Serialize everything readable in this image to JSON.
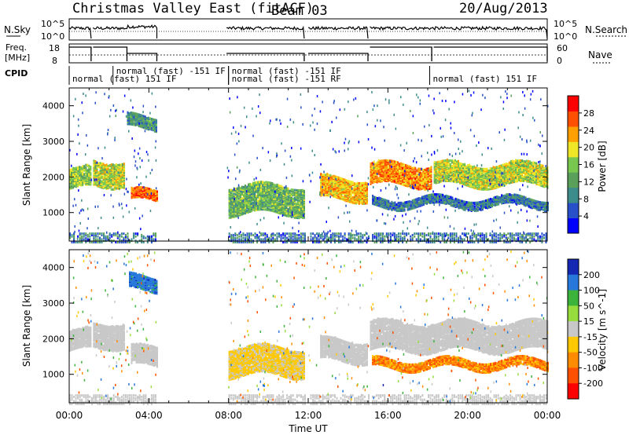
{
  "header": {
    "title": "Christmas Valley East (fitACF)",
    "beam": "Beam 03",
    "date": "20/Aug/2013"
  },
  "top_panels": {
    "nsky_label": "N.Sky",
    "nsearch_label": "N.Search",
    "nsky_ticks": [
      "10^5",
      "10^0"
    ],
    "freq_label_1": "Freq.",
    "freq_label_2": "[MHz]",
    "freq_ticks": [
      "18",
      "8"
    ],
    "nave_label": "Nave",
    "nave_ticks": [
      "60",
      "0"
    ],
    "cpid_label": "CPID",
    "cpid_entries": [
      {
        "text": "normal (fast) -151 IF",
        "row": 0,
        "start": 2.2
      },
      {
        "text": "normal (fast) 151 IF",
        "row": 1,
        "start": 0.0
      },
      {
        "text": "normal (fast) -151 IF",
        "row": 0,
        "start": 8.0
      },
      {
        "text": "normal (fast) -151 RF",
        "row": 1,
        "start": 8.0
      },
      {
        "text": "normal (fast) 151 IF",
        "row": 1,
        "start": 18.1
      }
    ]
  },
  "colors": {
    "power_scale": [
      "#0000ff",
      "#2850c8",
      "#3c8c8c",
      "#5aa05a",
      "#78c850",
      "#f0e628",
      "#ffa000",
      "#ff5000",
      "#ff0000"
    ],
    "velocity_scale": [
      "#1428b4",
      "#2878dc",
      "#3cb43c",
      "#96dc3c",
      "#c8c8c8",
      "#ffc800",
      "#ff8c00",
      "#ff5000",
      "#ff0000"
    ],
    "axis": "#000000"
  },
  "chart_data": [
    {
      "type": "heatmap",
      "panel": "power",
      "ylabel": "Slant Range [km]",
      "yticks": [
        "1000",
        "2000",
        "3000",
        "4000"
      ],
      "ylim": [
        200,
        4500
      ],
      "xlim": [
        0,
        24
      ],
      "colorbar_label": "Power [dB]",
      "colorbar_ticks": [
        "4",
        "8",
        "12",
        "16",
        "20",
        "24",
        "28"
      ],
      "colorbar_range": [
        0,
        32
      ],
      "echo_bands": [
        {
          "t0": 0.0,
          "t1": 1.1,
          "r0": 1700,
          "r1": 2250,
          "level": 16
        },
        {
          "t0": 1.2,
          "t1": 2.8,
          "r0": 1800,
          "r1": 2500,
          "level": 18
        },
        {
          "t0": 3.1,
          "t1": 4.4,
          "r0": 1350,
          "r1": 1650,
          "level": 26
        },
        {
          "t0": 2.9,
          "t1": 4.4,
          "r0": 3400,
          "r1": 3750,
          "level": 10
        },
        {
          "t0": 8.0,
          "t1": 11.8,
          "r0": 1000,
          "r1": 1800,
          "level": 14
        },
        {
          "t0": 12.6,
          "t1": 15.0,
          "r0": 1400,
          "r1": 2000,
          "level": 22
        },
        {
          "t0": 15.1,
          "t1": 18.2,
          "r0": 1800,
          "r1": 2400,
          "level": 24
        },
        {
          "t0": 18.3,
          "t1": 24.0,
          "r0": 1800,
          "r1": 2400,
          "level": 18
        },
        {
          "t0": 15.2,
          "t1": 24.0,
          "r0": 1200,
          "r1": 1450,
          "level": 8
        }
      ]
    },
    {
      "type": "heatmap",
      "panel": "velocity",
      "ylabel": "Slant Range [km]",
      "yticks": [
        "1000",
        "2000",
        "3000",
        "4000"
      ],
      "ylim": [
        200,
        4500
      ],
      "xlim": [
        0,
        24
      ],
      "xlabel": "Time UT",
      "xticks": [
        "00:00",
        "04:00",
        "08:00",
        "12:00",
        "16:00",
        "20:00",
        "00:00"
      ],
      "colorbar_label": "Velocity [m s^-1]",
      "colorbar_ticks": [
        "200",
        "100",
        "50",
        "15",
        "-15",
        "-50",
        "-100",
        "-200"
      ],
      "echo_bands": [
        {
          "t0": 0.0,
          "t1": 1.1,
          "r0": 1700,
          "r1": 2250,
          "level": 0
        },
        {
          "t0": 1.2,
          "t1": 2.8,
          "r0": 1800,
          "r1": 2500,
          "level": 0
        },
        {
          "t0": 3.1,
          "t1": 4.4,
          "r0": 1250,
          "r1": 1800,
          "level": 0
        },
        {
          "t0": 3.0,
          "t1": 4.4,
          "r0": 3400,
          "r1": 3800,
          "level": 150
        },
        {
          "t0": 8.0,
          "t1": 11.8,
          "r0": 1000,
          "r1": 1800,
          "level": -20
        },
        {
          "t0": 12.6,
          "t1": 15.0,
          "r0": 1400,
          "r1": 2000,
          "level": 0
        },
        {
          "t0": 15.1,
          "t1": 24.0,
          "r0": 1700,
          "r1": 2500,
          "level": 0
        },
        {
          "t0": 15.2,
          "t1": 24.0,
          "r0": 1200,
          "r1": 1450,
          "level": -80
        }
      ]
    }
  ]
}
